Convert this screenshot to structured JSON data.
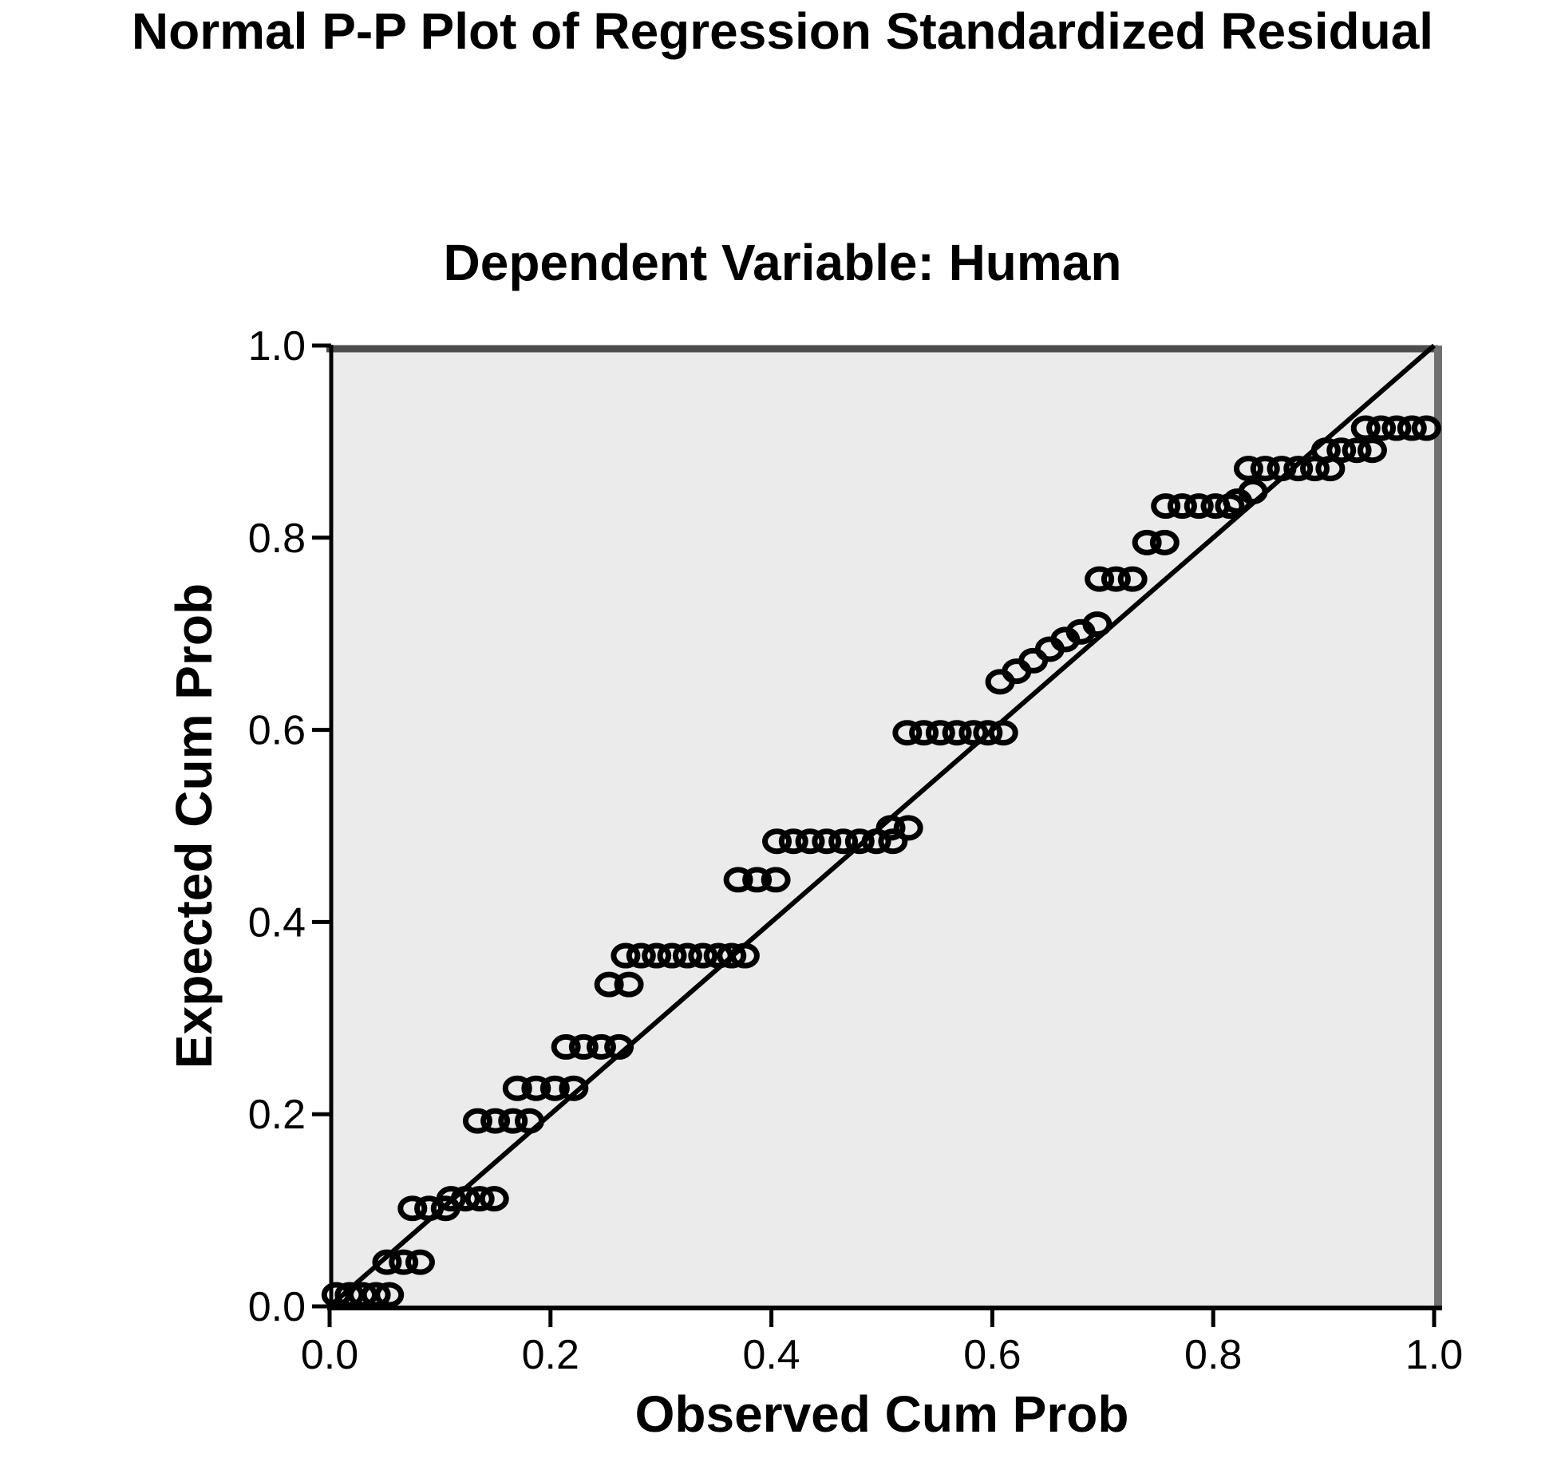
{
  "title": "Normal P-P Plot of Regression Standardized Residual",
  "chart": {
    "subtitle": "Dependent Variable: Human",
    "x_label": "Observed Cum Prob",
    "y_label": "Expected Cum Prob"
  },
  "chart_data": {
    "type": "scatter",
    "title": "Normal P-P Plot of Regression Standardized Residual",
    "subtitle": "Dependent Variable: Human",
    "xlabel": "Observed Cum Prob",
    "ylabel": "Expected Cum Prob",
    "xlim": [
      0.0,
      1.0
    ],
    "ylim": [
      0.0,
      1.0
    ],
    "x_ticks": [
      0.0,
      0.2,
      0.4,
      0.6,
      0.8,
      1.0
    ],
    "y_ticks": [
      0.0,
      0.2,
      0.4,
      0.6,
      0.8,
      1.0
    ],
    "x_tick_labels": [
      "0.0",
      "0.2",
      "0.4",
      "0.6",
      "0.8",
      "1.0"
    ],
    "y_tick_labels": [
      "0.0",
      "0.2",
      "0.4",
      "0.6",
      "0.8",
      "1.0"
    ],
    "grid": false,
    "legend": false,
    "reference_line": {
      "from": [
        0.0,
        0.0
      ],
      "to": [
        1.0,
        1.0
      ]
    },
    "marker": {
      "shape": "open-circle",
      "stroke": "#000000",
      "fill": "none"
    },
    "colors": {
      "plot_bg": "#EBEBEB",
      "frame_top": "#4D4D4D",
      "frame_right": "#707070",
      "axis": "#000000",
      "line": "#000000"
    },
    "series": [
      {
        "name": "Regression standardized residual",
        "points": [
          [
            0.006,
            0.012
          ],
          [
            0.018,
            0.012
          ],
          [
            0.03,
            0.012
          ],
          [
            0.042,
            0.012
          ],
          [
            0.054,
            0.012
          ],
          [
            0.052,
            0.046
          ],
          [
            0.067,
            0.046
          ],
          [
            0.082,
            0.046
          ],
          [
            0.075,
            0.102
          ],
          [
            0.09,
            0.102
          ],
          [
            0.105,
            0.102
          ],
          [
            0.11,
            0.112
          ],
          [
            0.123,
            0.112
          ],
          [
            0.136,
            0.112
          ],
          [
            0.149,
            0.112
          ],
          [
            0.134,
            0.193
          ],
          [
            0.15,
            0.193
          ],
          [
            0.166,
            0.193
          ],
          [
            0.181,
            0.193
          ],
          [
            0.17,
            0.227
          ],
          [
            0.187,
            0.227
          ],
          [
            0.204,
            0.227
          ],
          [
            0.221,
            0.227
          ],
          [
            0.214,
            0.27
          ],
          [
            0.23,
            0.27
          ],
          [
            0.246,
            0.27
          ],
          [
            0.262,
            0.27
          ],
          [
            0.253,
            0.335
          ],
          [
            0.271,
            0.335
          ],
          [
            0.268,
            0.365
          ],
          [
            0.282,
            0.365
          ],
          [
            0.296,
            0.365
          ],
          [
            0.31,
            0.365
          ],
          [
            0.324,
            0.365
          ],
          [
            0.338,
            0.365
          ],
          [
            0.352,
            0.365
          ],
          [
            0.364,
            0.365
          ],
          [
            0.376,
            0.365
          ],
          [
            0.37,
            0.444
          ],
          [
            0.387,
            0.444
          ],
          [
            0.404,
            0.444
          ],
          [
            0.405,
            0.484
          ],
          [
            0.42,
            0.484
          ],
          [
            0.435,
            0.484
          ],
          [
            0.45,
            0.484
          ],
          [
            0.465,
            0.484
          ],
          [
            0.48,
            0.484
          ],
          [
            0.495,
            0.484
          ],
          [
            0.51,
            0.484
          ],
          [
            0.508,
            0.498
          ],
          [
            0.524,
            0.498
          ],
          [
            0.523,
            0.597
          ],
          [
            0.538,
            0.597
          ],
          [
            0.553,
            0.597
          ],
          [
            0.568,
            0.597
          ],
          [
            0.583,
            0.597
          ],
          [
            0.596,
            0.597
          ],
          [
            0.61,
            0.597
          ],
          [
            0.607,
            0.65
          ],
          [
            0.622,
            0.661
          ],
          [
            0.637,
            0.672
          ],
          [
            0.652,
            0.684
          ],
          [
            0.666,
            0.694
          ],
          [
            0.68,
            0.702
          ],
          [
            0.695,
            0.71
          ],
          [
            0.697,
            0.757
          ],
          [
            0.712,
            0.757
          ],
          [
            0.727,
            0.757
          ],
          [
            0.74,
            0.795
          ],
          [
            0.756,
            0.795
          ],
          [
            0.757,
            0.833
          ],
          [
            0.772,
            0.833
          ],
          [
            0.787,
            0.833
          ],
          [
            0.802,
            0.833
          ],
          [
            0.815,
            0.833
          ],
          [
            0.822,
            0.838
          ],
          [
            0.836,
            0.848
          ],
          [
            0.832,
            0.872
          ],
          [
            0.847,
            0.872
          ],
          [
            0.862,
            0.872
          ],
          [
            0.877,
            0.872
          ],
          [
            0.892,
            0.872
          ],
          [
            0.906,
            0.872
          ],
          [
            0.902,
            0.891
          ],
          [
            0.916,
            0.891
          ],
          [
            0.93,
            0.891
          ],
          [
            0.944,
            0.891
          ],
          [
            0.938,
            0.914
          ],
          [
            0.952,
            0.914
          ],
          [
            0.966,
            0.914
          ],
          [
            0.98,
            0.914
          ],
          [
            0.993,
            0.914
          ]
        ]
      }
    ]
  }
}
